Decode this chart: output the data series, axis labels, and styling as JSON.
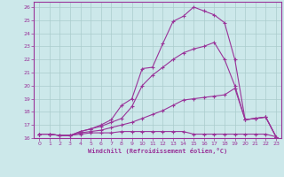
{
  "background_color": "#cce8ea",
  "grid_color": "#aacccc",
  "line_color": "#993399",
  "xlabel": "Windchill (Refroidissement éolien,°C)",
  "xlim": [
    -0.5,
    23.5
  ],
  "ylim": [
    16,
    26.4
  ],
  "yticks": [
    16,
    17,
    18,
    19,
    20,
    21,
    22,
    23,
    24,
    25,
    26
  ],
  "xticks": [
    0,
    1,
    2,
    3,
    4,
    5,
    6,
    7,
    8,
    9,
    10,
    11,
    12,
    13,
    14,
    15,
    16,
    17,
    18,
    19,
    20,
    21,
    22,
    23
  ],
  "series": [
    {
      "x": [
        0,
        1,
        2,
        3,
        4,
        5,
        6,
        7,
        8,
        9,
        10,
        11,
        12,
        13,
        14,
        15,
        16,
        17,
        18,
        19,
        20,
        21,
        22,
        23
      ],
      "y": [
        16.3,
        16.3,
        16.2,
        16.2,
        16.3,
        16.4,
        16.4,
        16.4,
        16.5,
        16.5,
        16.5,
        16.5,
        16.5,
        16.5,
        16.5,
        16.3,
        16.3,
        16.3,
        16.3,
        16.3,
        16.3,
        16.3,
        16.3,
        16.1
      ]
    },
    {
      "x": [
        0,
        1,
        2,
        3,
        4,
        5,
        6,
        7,
        8,
        9,
        10,
        11,
        12,
        13,
        14,
        15,
        16,
        17,
        18,
        19,
        20,
        21,
        22,
        23
      ],
      "y": [
        16.3,
        16.3,
        16.2,
        16.2,
        16.4,
        16.5,
        16.6,
        16.8,
        17.0,
        17.2,
        17.5,
        17.8,
        18.1,
        18.5,
        18.9,
        19.0,
        19.1,
        19.2,
        19.3,
        19.8,
        17.4,
        17.5,
        17.6,
        16.1
      ]
    },
    {
      "x": [
        0,
        1,
        2,
        3,
        4,
        5,
        6,
        7,
        8,
        9,
        10,
        11,
        12,
        13,
        14,
        15,
        16,
        17,
        18,
        19,
        20,
        21,
        22,
        23
      ],
      "y": [
        16.3,
        16.3,
        16.2,
        16.2,
        16.5,
        16.7,
        16.9,
        17.2,
        17.5,
        18.4,
        20.0,
        20.8,
        21.4,
        22.0,
        22.5,
        22.8,
        23.0,
        23.3,
        22.0,
        20.0,
        17.4,
        17.5,
        17.6,
        16.1
      ]
    },
    {
      "x": [
        0,
        1,
        2,
        3,
        4,
        5,
        6,
        7,
        8,
        9,
        10,
        11,
        12,
        13,
        14,
        15,
        16,
        17,
        18,
        19,
        20,
        21,
        22,
        23
      ],
      "y": [
        16.3,
        16.3,
        16.2,
        16.2,
        16.5,
        16.7,
        17.0,
        17.4,
        18.5,
        19.0,
        21.3,
        21.4,
        23.2,
        24.9,
        25.3,
        26.0,
        25.7,
        25.4,
        24.8,
        22.0,
        17.4,
        17.5,
        17.6,
        16.1
      ]
    }
  ]
}
